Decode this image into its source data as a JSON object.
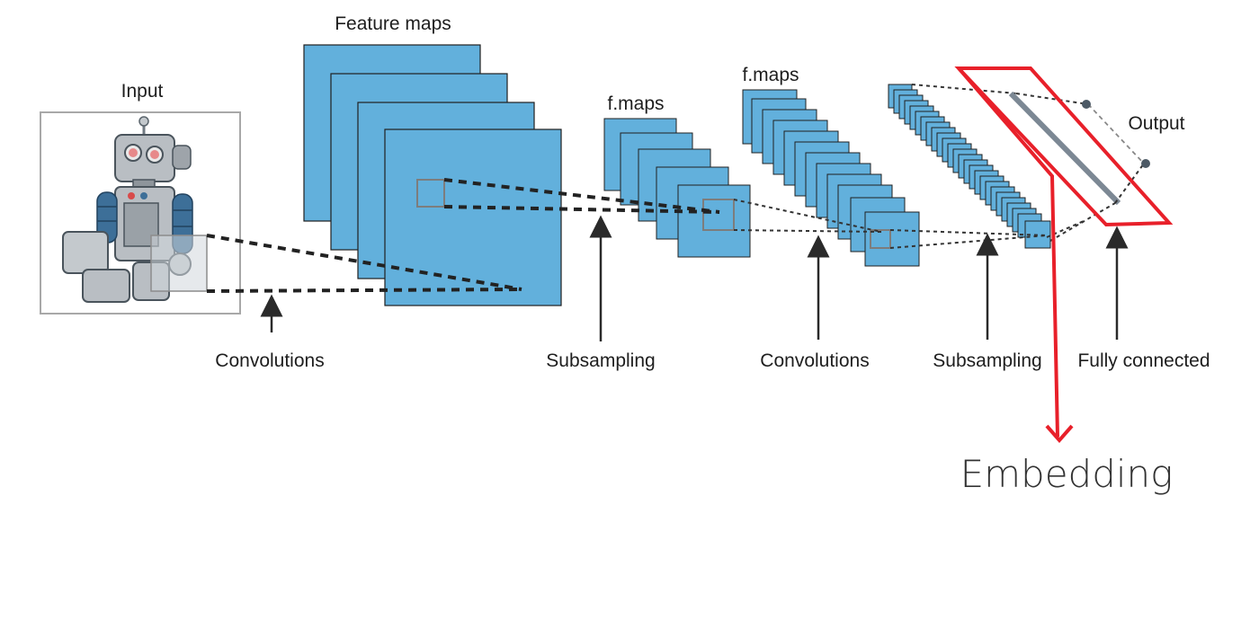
{
  "labels": {
    "input": "Input",
    "feature_maps": "Feature maps",
    "fmaps_1": "f.maps",
    "fmaps_2": "f.maps",
    "output": "Output",
    "convolutions_1": "Convolutions",
    "subsampling_1": "Subsampling",
    "convolutions_2": "Convolutions",
    "subsampling_2": "Subsampling",
    "fully_connected": "Fully connected",
    "embedding": "Embedding"
  },
  "colors": {
    "feature_map_fill": "#62b0dc",
    "highlight": "#e8202a",
    "robot_body": "#b9bec3",
    "robot_joint": "#3d6f98"
  },
  "icons": {
    "input_image": "robot-icon"
  }
}
